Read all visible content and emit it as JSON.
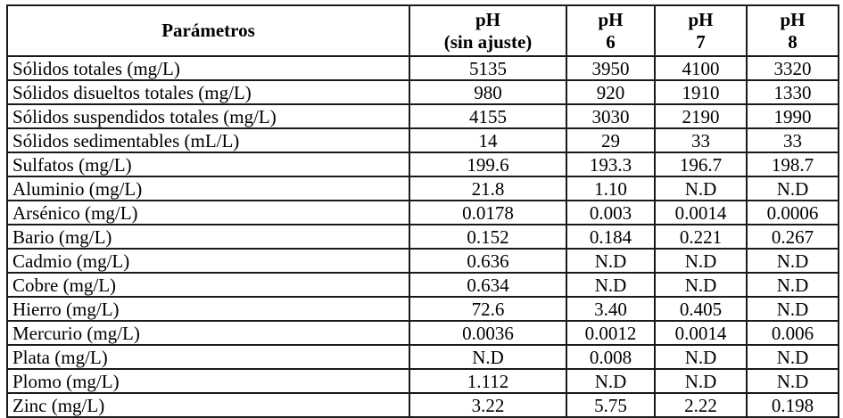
{
  "table": {
    "header": {
      "param_label": "Parámetros",
      "ph_columns": [
        {
          "line1": "pH",
          "line2": "(sin ajuste)"
        },
        {
          "line1": "pH",
          "line2": "6"
        },
        {
          "line1": "pH",
          "line2": "7"
        },
        {
          "line1": "pH",
          "line2": "8"
        }
      ]
    },
    "rows": [
      {
        "label": "Sólidos totales (mg/L)",
        "values": [
          "5135",
          "3950",
          "4100",
          "3320"
        ]
      },
      {
        "label": "Sólidos disueltos totales (mg/L)",
        "values": [
          "980",
          "920",
          "1910",
          "1330"
        ]
      },
      {
        "label": "Sólidos suspendidos totales (mg/L)",
        "values": [
          "4155",
          "3030",
          "2190",
          "1990"
        ]
      },
      {
        "label": "Sólidos sedimentables (mL/L)",
        "values": [
          "14",
          "29",
          "33",
          "33"
        ]
      },
      {
        "label": "Sulfatos (mg/L)",
        "values": [
          "199.6",
          "193.3",
          "196.7",
          "198.7"
        ]
      },
      {
        "label": "Aluminio (mg/L)",
        "values": [
          "21.8",
          "1.10",
          "N.D",
          "N.D"
        ]
      },
      {
        "label": "Arsénico (mg/L)",
        "values": [
          "0.0178",
          "0.003",
          "0.0014",
          "0.0006"
        ]
      },
      {
        "label": "Bario (mg/L)",
        "values": [
          "0.152",
          "0.184",
          "0.221",
          "0.267"
        ]
      },
      {
        "label": "Cadmio (mg/L)",
        "values": [
          "0.636",
          "N.D",
          "N.D",
          "N.D"
        ]
      },
      {
        "label": "Cobre (mg/L)",
        "values": [
          "0.634",
          "N.D",
          "N.D",
          "N.D"
        ]
      },
      {
        "label": "Hierro (mg/L)",
        "values": [
          "72.6",
          "3.40",
          "0.405",
          "N.D"
        ]
      },
      {
        "label": "Mercurio (mg/L)",
        "values": [
          "0.0036",
          "0.0012",
          "0.0014",
          "0.006"
        ]
      },
      {
        "label": "Plata (mg/L)",
        "values": [
          "N.D",
          "0.008",
          "N.D",
          "N.D"
        ]
      },
      {
        "label": "Plomo (mg/L)",
        "values": [
          "1.112",
          "N.D",
          "N.D",
          "N.D"
        ]
      },
      {
        "label": "Zinc (mg/L)",
        "values": [
          "3.22",
          "5.75",
          "2.22",
          "0.198"
        ]
      }
    ],
    "colors": {
      "border": "#1a1a1a",
      "text": "#000000",
      "background": "#ffffff"
    }
  }
}
